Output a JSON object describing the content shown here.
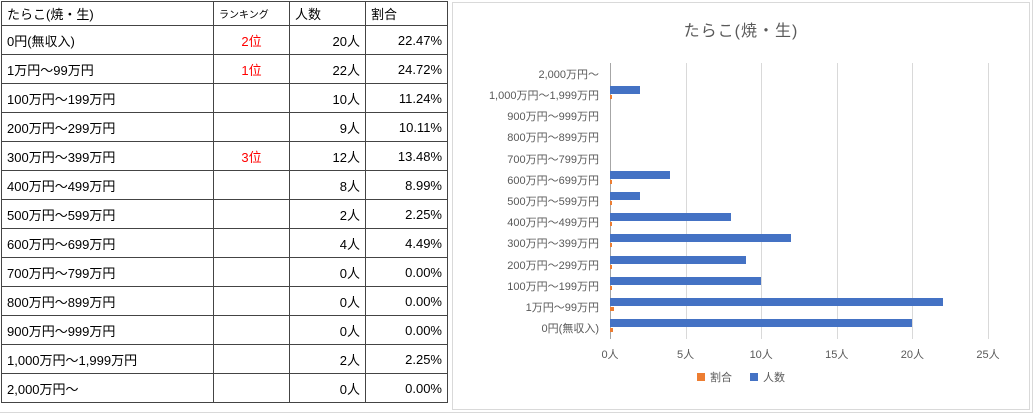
{
  "table": {
    "headers": {
      "category": "たらこ(焼・生)",
      "rank": "ランキング",
      "count": "人数",
      "percent": "割合"
    },
    "rows": [
      {
        "category": "0円(無収入)",
        "rank": "2位",
        "count": "20人",
        "percent": "22.47%"
      },
      {
        "category": "1万円〜99万円",
        "rank": "1位",
        "count": "22人",
        "percent": "24.72%"
      },
      {
        "category": "100万円〜199万円",
        "rank": "",
        "count": "10人",
        "percent": "11.24%"
      },
      {
        "category": "200万円〜299万円",
        "rank": "",
        "count": "9人",
        "percent": "10.11%"
      },
      {
        "category": "300万円〜399万円",
        "rank": "3位",
        "count": "12人",
        "percent": "13.48%"
      },
      {
        "category": "400万円〜499万円",
        "rank": "",
        "count": "8人",
        "percent": "8.99%"
      },
      {
        "category": "500万円〜599万円",
        "rank": "",
        "count": "2人",
        "percent": "2.25%"
      },
      {
        "category": "600万円〜699万円",
        "rank": "",
        "count": "4人",
        "percent": "4.49%"
      },
      {
        "category": "700万円〜799万円",
        "rank": "",
        "count": "0人",
        "percent": "0.00%"
      },
      {
        "category": "800万円〜899万円",
        "rank": "",
        "count": "0人",
        "percent": "0.00%"
      },
      {
        "category": "900万円〜999万円",
        "rank": "",
        "count": "0人",
        "percent": "0.00%"
      },
      {
        "category": "1,000万円〜1,999万円",
        "rank": "",
        "count": "2人",
        "percent": "2.25%"
      },
      {
        "category": "2,000万円〜",
        "rank": "",
        "count": "0人",
        "percent": "0.00%"
      }
    ],
    "rank_color": "#ff0000"
  },
  "chart_data": {
    "type": "bar",
    "orientation": "horizontal",
    "title": "たらこ(焼・生)",
    "categories": [
      "0円(無収入)",
      "1万円〜99万円",
      "100万円〜199万円",
      "200万円〜299万円",
      "300万円〜399万円",
      "400万円〜499万円",
      "500万円〜599万円",
      "600万円〜699万円",
      "700万円〜799万円",
      "800万円〜899万円",
      "900万円〜999万円",
      "1,000万円〜1,999万円",
      "2,000万円〜"
    ],
    "category_axis_order": "first-at-bottom",
    "series": [
      {
        "name": "割合",
        "color": "#ED7D31",
        "values": [
          0.2247,
          0.2472,
          0.1124,
          0.1011,
          0.1348,
          0.0899,
          0.0225,
          0.0449,
          0,
          0,
          0,
          0.0225,
          0
        ]
      },
      {
        "name": "人数",
        "color": "#4472C4",
        "values": [
          20,
          22,
          10,
          9,
          12,
          8,
          2,
          4,
          0,
          0,
          0,
          2,
          0
        ]
      }
    ],
    "x_ticks": [
      "0人",
      "5人",
      "10人",
      "15人",
      "20人",
      "25人"
    ],
    "xlim": [
      0,
      25
    ],
    "grid": true,
    "legend_position": "bottom",
    "title_color": "#595959",
    "axis_text_color": "#595959"
  }
}
